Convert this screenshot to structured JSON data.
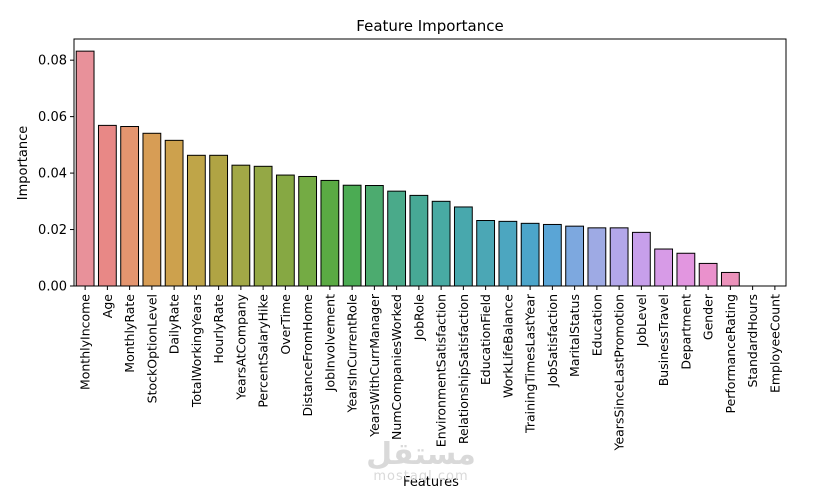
{
  "chart_data": {
    "type": "bar",
    "title": "Feature Importance",
    "xlabel": "Features",
    "ylabel": "Importance",
    "ylim": [
      0,
      0.0875
    ],
    "yticks": [
      0.0,
      0.02,
      0.04,
      0.06,
      0.08
    ],
    "ytick_labels": [
      "0.00",
      "0.02",
      "0.04",
      "0.06",
      "0.08"
    ],
    "grid": false,
    "categories": [
      "MonthlyIncome",
      "Age",
      "MonthlyRate",
      "StockOptionLevel",
      "DailyRate",
      "TotalWorkingYears",
      "HourlyRate",
      "YearsAtCompany",
      "PercentSalaryHike",
      "OverTime",
      "DistanceFromHome",
      "JobInvolvement",
      "YearsInCurrentRole",
      "YearsWithCurrManager",
      "NumCompaniesWorked",
      "JobRole",
      "EnvironmentSatisfaction",
      "RelationshipSatisfaction",
      "EducationField",
      "WorkLifeBalance",
      "TrainingTimesLastYear",
      "JobSatisfaction",
      "MaritalStatus",
      "Education",
      "YearsSinceLastPromotion",
      "JobLevel",
      "BusinessTravel",
      "Department",
      "Gender",
      "PerformanceRating",
      "StandardHours",
      "EmployeeCount"
    ],
    "values": [
      0.0832,
      0.0569,
      0.0565,
      0.0541,
      0.0516,
      0.0463,
      0.0463,
      0.0428,
      0.0424,
      0.0393,
      0.0388,
      0.0374,
      0.0357,
      0.0356,
      0.0336,
      0.0321,
      0.03,
      0.028,
      0.0232,
      0.0229,
      0.0222,
      0.0218,
      0.0212,
      0.0206,
      0.0206,
      0.019,
      0.0131,
      0.0116,
      0.008,
      0.0048,
      0.0,
      0.0
    ],
    "colors": [
      "#e8919a",
      "#e88886",
      "#e4956f",
      "#d79d55",
      "#cda14d",
      "#bfa548",
      "#b0a444",
      "#a2a846",
      "#94a845",
      "#86a843",
      "#74ab44",
      "#5aaa43",
      "#4bab53",
      "#4cab6f",
      "#4aaa8a",
      "#47a995",
      "#48aaa3",
      "#48a8ad",
      "#4ba7b5",
      "#4ca6c0",
      "#4ca5ca",
      "#5aa5d6",
      "#7da8df",
      "#9eaae4",
      "#b3a7ea",
      "#c79feb",
      "#d79be7",
      "#e296e0",
      "#ea91cc",
      "#ec92bb",
      "#e8919a",
      "#e88886"
    ]
  },
  "watermark": {
    "arabic": "مستقل",
    "latin": "mostaql.com"
  }
}
